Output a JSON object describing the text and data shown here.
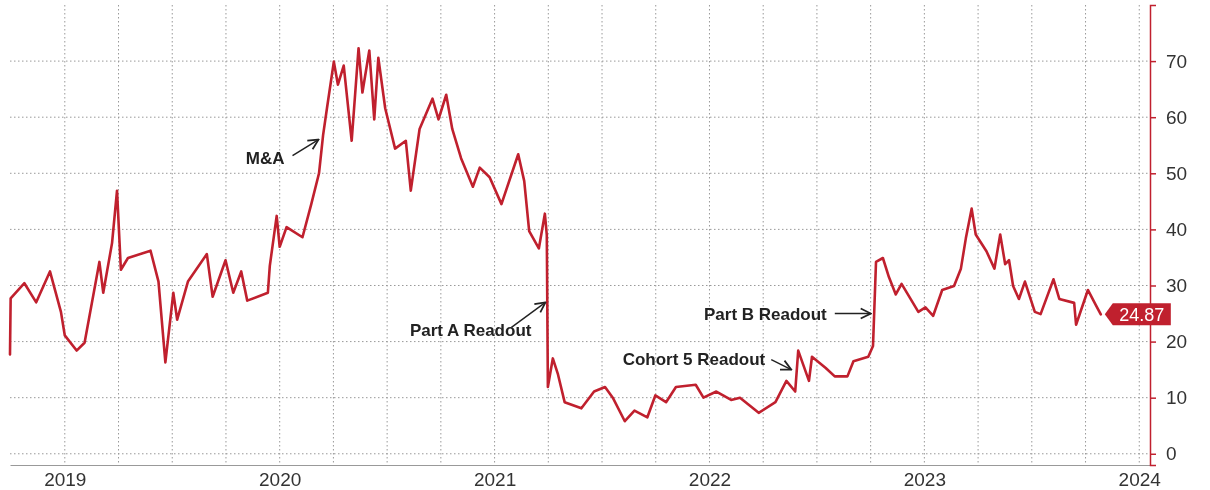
{
  "chart_data": {
    "type": "line",
    "xlim": [
      2018.745,
      2024.05
    ],
    "ylim": [
      -2,
      80
    ],
    "xticks": [
      {
        "value": 2019,
        "label": "2019"
      },
      {
        "value": 2019.25,
        "label": null
      },
      {
        "value": 2019.5,
        "label": null
      },
      {
        "value": 2019.75,
        "label": null
      },
      {
        "value": 2020,
        "label": "2020"
      },
      {
        "value": 2020.25,
        "label": null
      },
      {
        "value": 2020.5,
        "label": null
      },
      {
        "value": 2020.75,
        "label": null
      },
      {
        "value": 2021,
        "label": "2021"
      },
      {
        "value": 2021.25,
        "label": null
      },
      {
        "value": 2021.5,
        "label": null
      },
      {
        "value": 2021.75,
        "label": null
      },
      {
        "value": 2022,
        "label": "2022"
      },
      {
        "value": 2022.25,
        "label": null
      },
      {
        "value": 2022.5,
        "label": null
      },
      {
        "value": 2022.75,
        "label": null
      },
      {
        "value": 2023,
        "label": "2023"
      },
      {
        "value": 2023.25,
        "label": null
      },
      {
        "value": 2023.5,
        "label": null
      },
      {
        "value": 2023.75,
        "label": null
      },
      {
        "value": 2024,
        "label": "2024"
      }
    ],
    "yticks": [
      0,
      10,
      20,
      30,
      40,
      50,
      60,
      70
    ],
    "grid": true,
    "line_style": "solid",
    "annotations": [
      {
        "text": "M&A",
        "x": 2020.19,
        "y": 56
      },
      {
        "text": "Part A Readout",
        "x": 2021.246,
        "y": 27
      },
      {
        "text": "Cohort 5 Readout",
        "x": 2022.39,
        "y": 15
      },
      {
        "text": "Part B Readout",
        "x": 2022.76,
        "y": 25
      }
    ],
    "series": [
      {
        "color": "#c0202e",
        "x": [
          2018.745,
          2018.748,
          2018.812,
          2018.867,
          2018.931,
          2018.982,
          2019.0,
          2019.055,
          2019.092,
          2019.161,
          2019.179,
          2019.22,
          2019.243,
          2019.261,
          2019.294,
          2019.399,
          2019.436,
          2019.468,
          2019.505,
          2019.523,
          2019.573,
          2019.661,
          2019.688,
          2019.748,
          2019.784,
          2019.821,
          2019.849,
          2019.945,
          2019.954,
          2019.986,
          2020.0,
          2020.032,
          2020.106,
          2020.147,
          2020.183,
          2020.202,
          2020.22,
          2020.252,
          2020.271,
          2020.298,
          2020.335,
          2020.367,
          2020.385,
          2020.417,
          2020.44,
          2020.459,
          2020.491,
          2020.537,
          2020.587,
          2020.61,
          2020.651,
          2020.711,
          2020.739,
          2020.775,
          2020.803,
          2020.844,
          2020.899,
          2020.931,
          2020.977,
          2021.032,
          2021.11,
          2021.138,
          2021.161,
          2021.206,
          2021.234,
          2021.243,
          2021.248,
          2021.271,
          2021.294,
          2021.326,
          2021.404,
          2021.463,
          2021.514,
          2021.55,
          2021.606,
          2021.651,
          2021.711,
          2021.748,
          2021.798,
          2021.844,
          2021.936,
          2021.972,
          2022.032,
          2022.101,
          2022.142,
          2022.229,
          2022.307,
          2022.358,
          2022.399,
          2022.413,
          2022.463,
          2022.477,
          2022.541,
          2022.583,
          2022.642,
          2022.67,
          2022.739,
          2022.761,
          2022.775,
          2022.807,
          2022.835,
          2022.867,
          2022.894,
          2022.972,
          2023.005,
          2023.041,
          2023.083,
          2023.138,
          2023.17,
          2023.193,
          2023.22,
          2023.239,
          2023.289,
          2023.326,
          2023.353,
          2023.376,
          2023.394,
          2023.413,
          2023.44,
          2023.468,
          2023.514,
          2023.541,
          2023.601,
          2023.628,
          2023.697,
          2023.706,
          2023.761,
          2023.798,
          2023.821
        ],
        "values": [
          17.7,
          27.7,
          30.4,
          27,
          32.5,
          25.3,
          21.1,
          18.4,
          19.8,
          34.2,
          28.7,
          37.6,
          46.9,
          32.8,
          34.9,
          36.2,
          30.7,
          16.3,
          28.7,
          23.9,
          30.7,
          35.6,
          28,
          34.5,
          28.7,
          32.5,
          27.3,
          28.7,
          33.5,
          42.4,
          36.9,
          40.4,
          38.6,
          44.5,
          50,
          56.8,
          61.6,
          69.9,
          65.8,
          69.2,
          55.8,
          72.3,
          64.4,
          71.9,
          59.6,
          70.6,
          61.6,
          54.4,
          55.8,
          46.9,
          57.9,
          63.3,
          59.6,
          64,
          57.9,
          52.7,
          47.6,
          51,
          49.3,
          44.5,
          53.4,
          48.6,
          39.7,
          36.6,
          42.8,
          39,
          11.9,
          17,
          14.3,
          9.2,
          8.1,
          11.1,
          11.9,
          10,
          5.8,
          7.7,
          6.5,
          10.4,
          9.2,
          11.9,
          12.3,
          10,
          11.1,
          9.6,
          10,
          7.3,
          9.2,
          13,
          11.1,
          18.4,
          13,
          17.3,
          15.3,
          13.8,
          13.8,
          16.5,
          17.3,
          19.2,
          34.2,
          34.9,
          31.5,
          28.4,
          30.3,
          25.3,
          26.1,
          24.6,
          29.2,
          29.9,
          33,
          38.4,
          43.7,
          39.1,
          36.1,
          33,
          39.1,
          33.8,
          34.5,
          29.9,
          27.6,
          30.7,
          25.3,
          24.9,
          31.1,
          27.6,
          26.9,
          23,
          29.2,
          26.5,
          24.87
        ],
        "value_labels": [
          null,
          null,
          null,
          null,
          null,
          null,
          null,
          null,
          null,
          null,
          null,
          null,
          null,
          null,
          null,
          null,
          null,
          null,
          null,
          null,
          null,
          null,
          null,
          null,
          null,
          null,
          null,
          null,
          null,
          null,
          null,
          null,
          null,
          null,
          null,
          null,
          null,
          null,
          null,
          null,
          null,
          null,
          null,
          null,
          null,
          null,
          null,
          null,
          null,
          null,
          null,
          null,
          null,
          null,
          null,
          null,
          null,
          null,
          null,
          null,
          null,
          null,
          null,
          null,
          null,
          null,
          null,
          null,
          null,
          null,
          null,
          null,
          null,
          null,
          null,
          null,
          null,
          null,
          null,
          null,
          null,
          null,
          null,
          null,
          null,
          null,
          null,
          null,
          null,
          null,
          null,
          null,
          null,
          null,
          null,
          null,
          null,
          null,
          null,
          null,
          null,
          null,
          null,
          null,
          null,
          null,
          null,
          null,
          null,
          null,
          null,
          null,
          null,
          null,
          null,
          null,
          null,
          null,
          null,
          null,
          null,
          null,
          null,
          null,
          null,
          null,
          null,
          null,
          "24.87"
        ]
      }
    ]
  }
}
